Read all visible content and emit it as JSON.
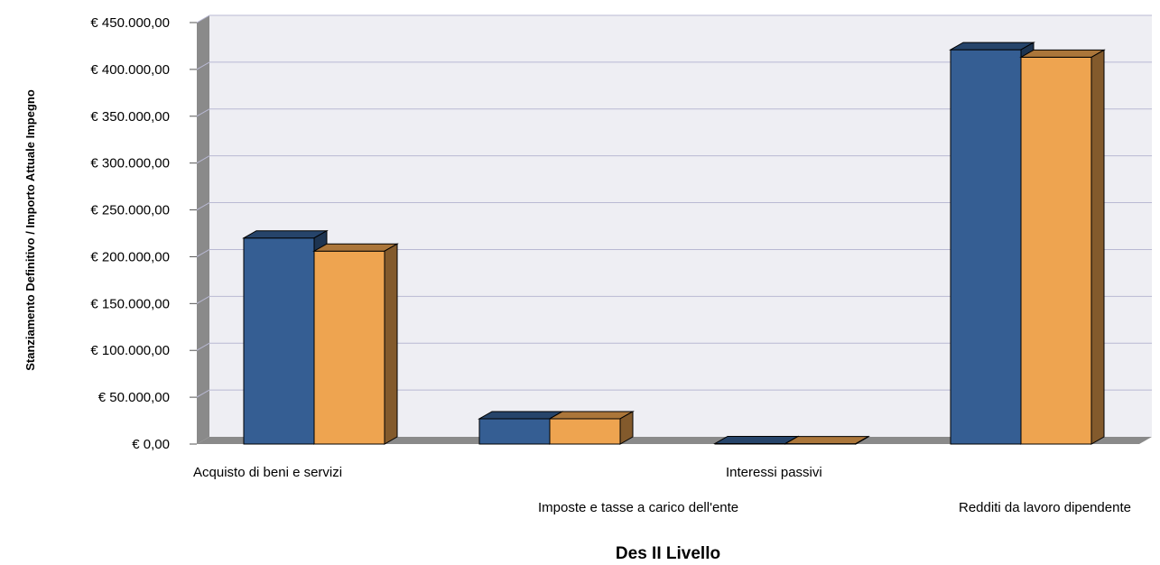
{
  "chart_data": {
    "type": "bar",
    "xlabel": "Des II Livello",
    "ylabel": "Stanziamento Definitivo / Importo Attuale Impegno",
    "categories": [
      "Acquisto di beni e servizi",
      "Imposte e tasse a carico dell'ente",
      "Interessi passivi",
      "Redditi da lavoro dipendente"
    ],
    "series": [
      {
        "values": [
          220000,
          27000,
          500,
          421000
        ],
        "color": "#355e93"
      },
      {
        "values": [
          206000,
          27000,
          400,
          413000
        ],
        "color": "#eea450"
      }
    ],
    "ylim": [
      0,
      450000
    ],
    "yticks": [
      {
        "value": 0,
        "label": "€ 0,00"
      },
      {
        "value": 50000,
        "label": "€ 50.000,00"
      },
      {
        "value": 100000,
        "label": "€ 100.000,00"
      },
      {
        "value": 150000,
        "label": "€ 150.000,00"
      },
      {
        "value": 200000,
        "label": "€ 200.000,00"
      },
      {
        "value": 250000,
        "label": "€ 250.000,00"
      },
      {
        "value": 300000,
        "label": "€ 300.000,00"
      },
      {
        "value": 350000,
        "label": "€ 350.000,00"
      },
      {
        "value": 400000,
        "label": "€ 400.000,00"
      },
      {
        "value": 450000,
        "label": "€ 450.000,00"
      }
    ],
    "grid": true,
    "legend": "none",
    "colors": {
      "plot_background": "#eeeef3",
      "gridline": "#b9b9d3",
      "wall_side": "#8a8a8a"
    }
  }
}
